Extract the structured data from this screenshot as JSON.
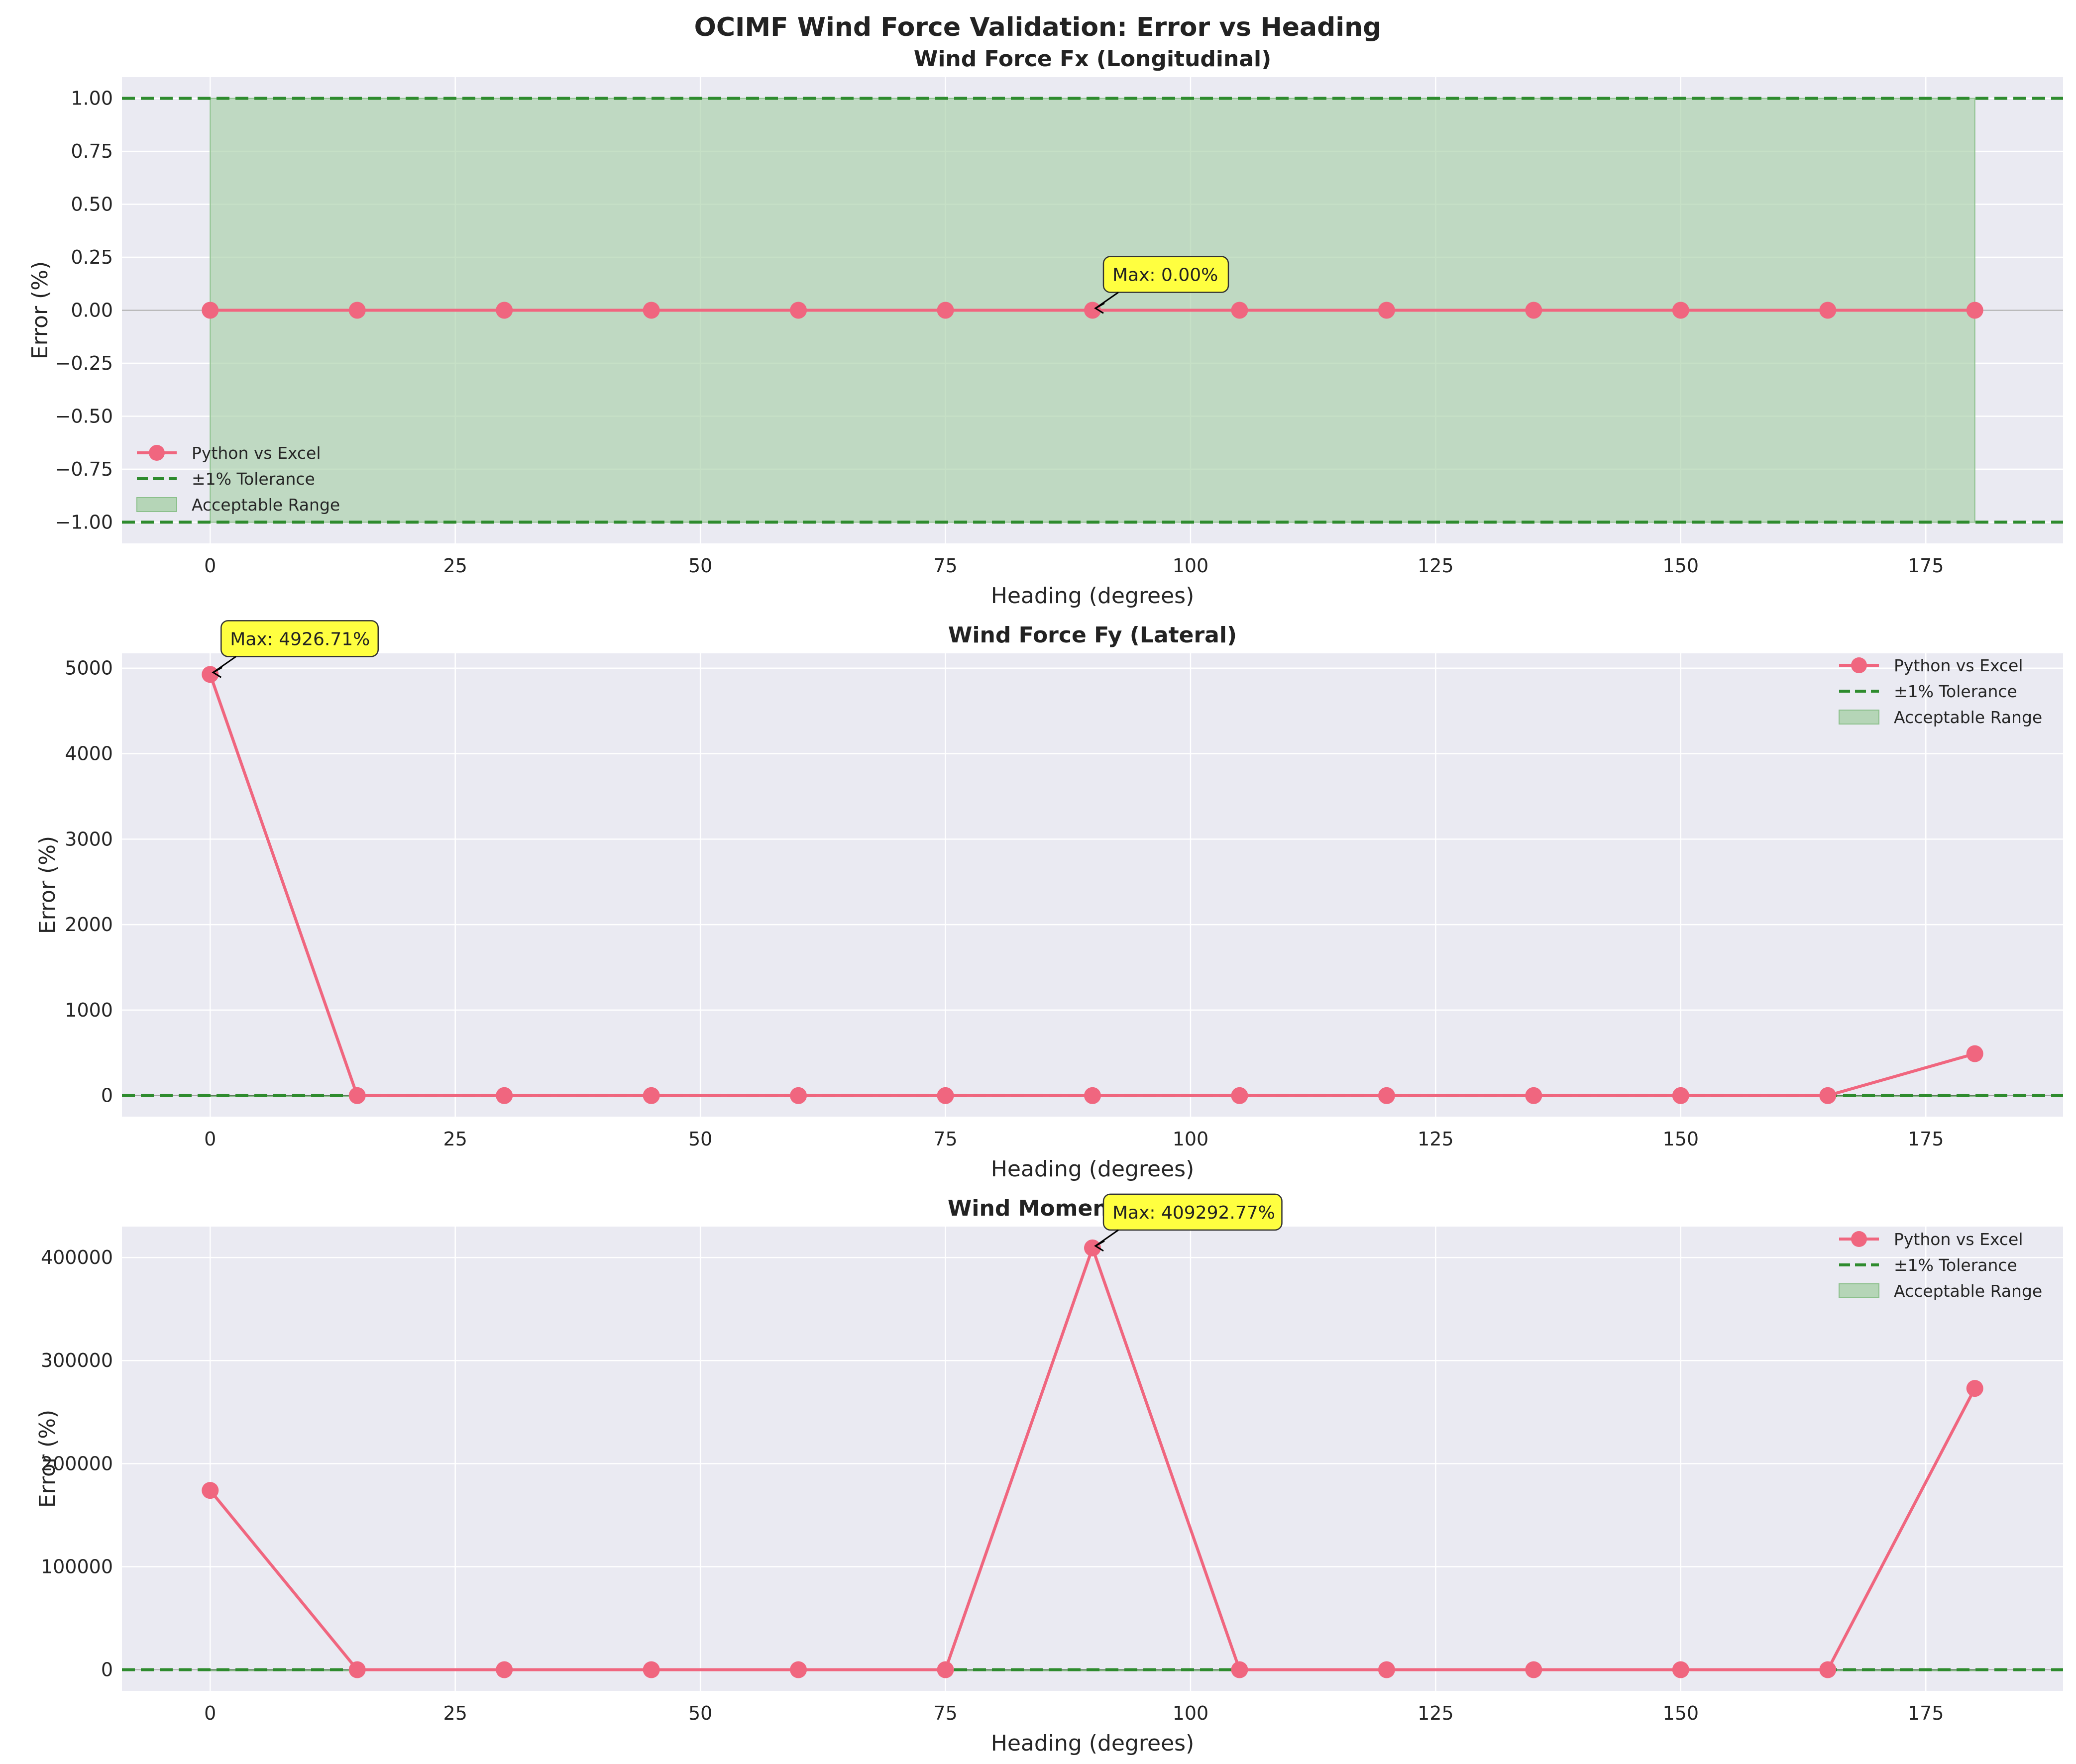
{
  "figure": {
    "suptitle": "OCIMF Wind Force Validation: Error vs Heading"
  },
  "colors": {
    "line": "#f0667f",
    "tolerance": "#2e8b2e",
    "band": "#a8cfa8",
    "zero_line": "#000000",
    "axes_bg": "#eaeaf2",
    "annotation_bg": "#ffff40"
  },
  "chart_data": [
    {
      "type": "line",
      "title": "Wind Force Fx (Longitudinal)",
      "xlabel": "Heading (degrees)",
      "ylabel": "Error (%)",
      "xlim": [
        -9,
        189
      ],
      "ylim": [
        -1.1,
        1.1
      ],
      "x_ticks": [
        0,
        25,
        50,
        75,
        100,
        125,
        150,
        175
      ],
      "y_ticks": [
        -1.0,
        -0.75,
        -0.5,
        -0.25,
        0.0,
        0.25,
        0.5,
        0.75,
        1.0
      ],
      "y_tick_labels": [
        "−1.00",
        "−0.75",
        "−0.50",
        "−0.25",
        "0.00",
        "0.25",
        "0.50",
        "0.75",
        "1.00"
      ],
      "grid": true,
      "legend_position": "lower-left",
      "series": [
        {
          "name": "Python vs Excel",
          "x": [
            0,
            15,
            30,
            45,
            60,
            75,
            90,
            105,
            120,
            135,
            150,
            165,
            180
          ],
          "values": [
            0,
            0,
            0,
            0,
            0,
            0,
            0,
            0,
            0,
            0,
            0,
            0,
            0
          ]
        }
      ],
      "tolerance_label": "±1% Tolerance",
      "tolerance": [
        -1,
        1
      ],
      "band_label": "Acceptable Range",
      "band_x": [
        0,
        180
      ],
      "annotation": {
        "text": "Max: 0.00%",
        "x": 90,
        "y": 0
      }
    },
    {
      "type": "line",
      "title": "Wind Force Fy (Lateral)",
      "xlabel": "Heading (degrees)",
      "ylabel": "Error (%)",
      "xlim": [
        -9,
        189
      ],
      "ylim": [
        -246,
        5173
      ],
      "x_ticks": [
        0,
        25,
        50,
        75,
        100,
        125,
        150,
        175
      ],
      "y_ticks": [
        0,
        1000,
        2000,
        3000,
        4000,
        5000
      ],
      "y_tick_labels": [
        "0",
        "1000",
        "2000",
        "3000",
        "4000",
        "5000"
      ],
      "grid": true,
      "legend_position": "upper-right",
      "series": [
        {
          "name": "Python vs Excel",
          "x": [
            0,
            15,
            30,
            45,
            60,
            75,
            90,
            105,
            120,
            135,
            150,
            165,
            180
          ],
          "values": [
            4926.71,
            0,
            0,
            0,
            0,
            0,
            0,
            0,
            0,
            0,
            0,
            0,
            490
          ]
        }
      ],
      "tolerance_label": "±1% Tolerance",
      "tolerance": [
        -1,
        1
      ],
      "band_label": "Acceptable Range",
      "band_x": [
        0,
        180
      ],
      "annotation": {
        "text": "Max: 4926.71%",
        "x": 0,
        "y": 4926.71
      }
    },
    {
      "type": "line",
      "title": "Wind Moment Mz (Yaw)",
      "xlabel": "Heading (degrees)",
      "ylabel": "Error (%)",
      "xlim": [
        -9,
        189
      ],
      "ylim": [
        -20500,
        430000
      ],
      "x_ticks": [
        0,
        25,
        50,
        75,
        100,
        125,
        150,
        175
      ],
      "y_ticks": [
        0,
        100000,
        200000,
        300000,
        400000
      ],
      "y_tick_labels": [
        "0",
        "100000",
        "200000",
        "300000",
        "400000"
      ],
      "grid": true,
      "legend_position": "upper-right",
      "series": [
        {
          "name": "Python vs Excel",
          "x": [
            0,
            15,
            30,
            45,
            60,
            75,
            90,
            105,
            120,
            135,
            150,
            165,
            180
          ],
          "values": [
            174000,
            0,
            0,
            0,
            0,
            0,
            409292.77,
            0,
            0,
            0,
            0,
            0,
            273000
          ]
        }
      ],
      "tolerance_label": "±1% Tolerance",
      "tolerance": [
        -1,
        1
      ],
      "band_label": "Acceptable Range",
      "band_x": [
        0,
        180
      ],
      "annotation": {
        "text": "Max: 409292.77%",
        "x": 90,
        "y": 409292.77
      }
    }
  ]
}
